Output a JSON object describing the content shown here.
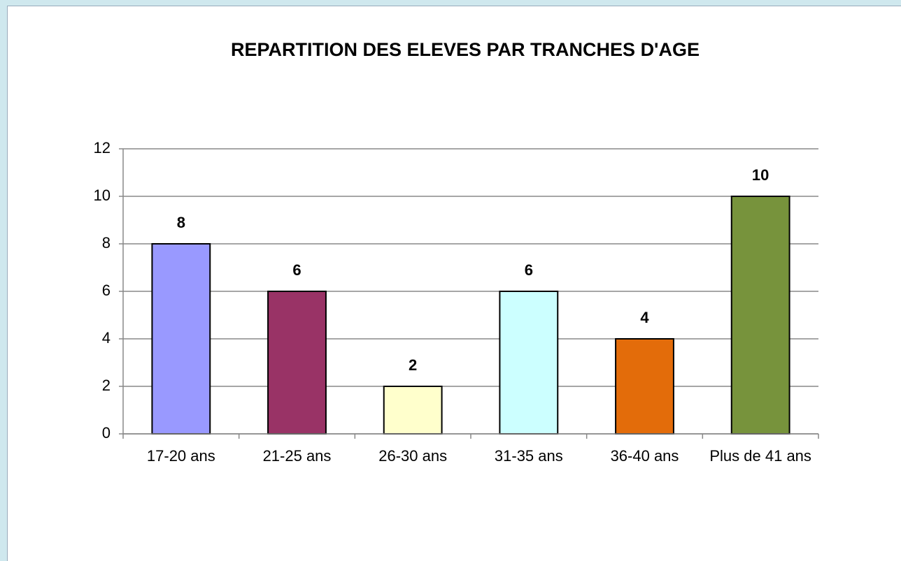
{
  "chart_data": {
    "type": "bar",
    "title": "REPARTITION DES ELEVES PAR TRANCHES D'AGE",
    "categories": [
      "17-20 ans",
      "21-25 ans",
      "26-30 ans",
      "31-35 ans",
      "36-40 ans",
      "Plus de 41 ans"
    ],
    "values": [
      8,
      6,
      2,
      6,
      4,
      10
    ],
    "colors": [
      "#9999ff",
      "#993366",
      "#ffffcc",
      "#ccffff",
      "#e36c0a",
      "#77933c"
    ],
    "ylim": [
      0,
      12
    ],
    "yticks": [
      0,
      2,
      4,
      6,
      8,
      10,
      12
    ],
    "grid": true
  }
}
